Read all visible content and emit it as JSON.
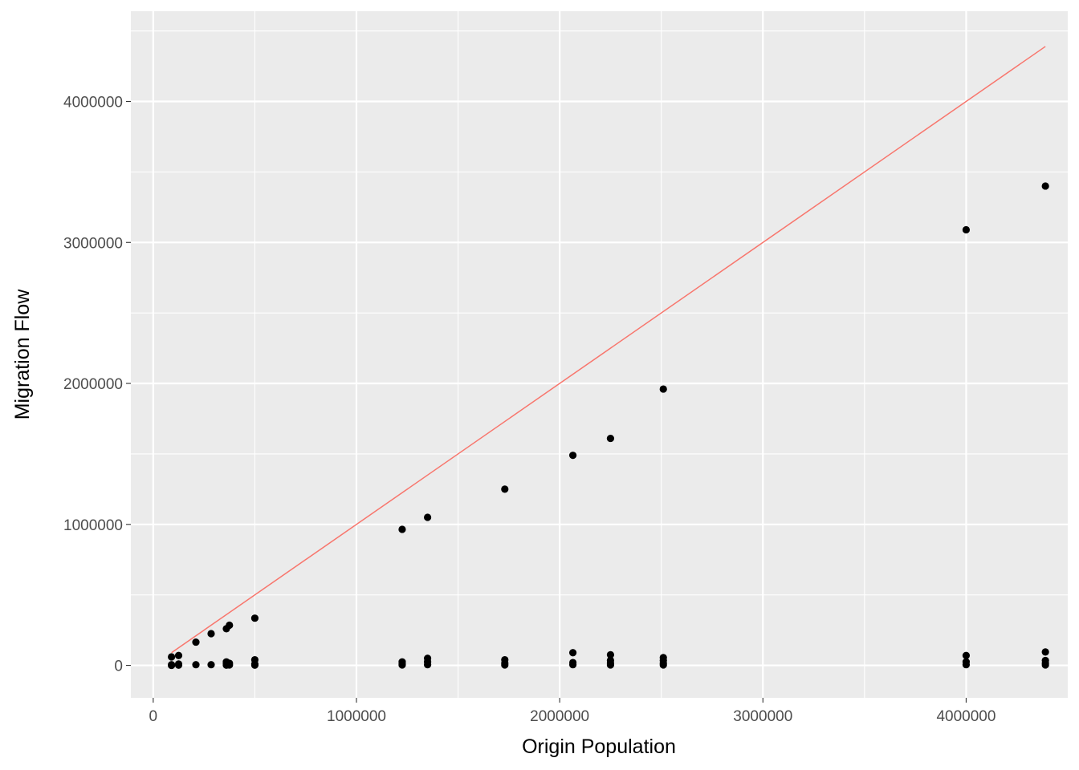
{
  "chart_data": {
    "type": "scatter",
    "title": "",
    "xlabel": "Origin Population",
    "ylabel": "Migration Flow",
    "xlim": [
      -110000,
      4500000
    ],
    "ylim": [
      -230000,
      4640000
    ],
    "x_ticks": [
      {
        "value": 0,
        "label": "0"
      },
      {
        "value": 1000000,
        "label": "1000000"
      },
      {
        "value": 2000000,
        "label": "2000000"
      },
      {
        "value": 3000000,
        "label": "3000000"
      },
      {
        "value": 4000000,
        "label": "4000000"
      }
    ],
    "y_ticks": [
      {
        "value": 0,
        "label": "0"
      },
      {
        "value": 1000000,
        "label": "1000000"
      },
      {
        "value": 2000000,
        "label": "2000000"
      },
      {
        "value": 3000000,
        "label": "3000000"
      },
      {
        "value": 4000000,
        "label": "4000000"
      }
    ],
    "grid": true,
    "colors": {
      "panel_background": "#ebebeb",
      "grid_line": "#ffffff",
      "point": "#000000",
      "reference_line": "#f8766d"
    },
    "reference_line": {
      "type": "identity",
      "x": [
        90000,
        4390000
      ],
      "y": [
        90000,
        4390000
      ]
    },
    "points": [
      {
        "x": 90000,
        "y": 60000
      },
      {
        "x": 90000,
        "y": 5000
      },
      {
        "x": 90000,
        "y": 0
      },
      {
        "x": 125000,
        "y": 70000
      },
      {
        "x": 125000,
        "y": 10000
      },
      {
        "x": 125000,
        "y": 2000
      },
      {
        "x": 210000,
        "y": 165000
      },
      {
        "x": 210000,
        "y": 5000
      },
      {
        "x": 285000,
        "y": 225000
      },
      {
        "x": 285000,
        "y": 5000
      },
      {
        "x": 360000,
        "y": 260000
      },
      {
        "x": 360000,
        "y": 25000
      },
      {
        "x": 360000,
        "y": 12000
      },
      {
        "x": 360000,
        "y": 2000
      },
      {
        "x": 375000,
        "y": 285000
      },
      {
        "x": 375000,
        "y": 15000
      },
      {
        "x": 375000,
        "y": 3000
      },
      {
        "x": 500000,
        "y": 335000
      },
      {
        "x": 500000,
        "y": 40000
      },
      {
        "x": 500000,
        "y": 10000
      },
      {
        "x": 500000,
        "y": 2000
      },
      {
        "x": 1225000,
        "y": 965000
      },
      {
        "x": 1225000,
        "y": 25000
      },
      {
        "x": 1225000,
        "y": 10000
      },
      {
        "x": 1225000,
        "y": 3000
      },
      {
        "x": 1350000,
        "y": 1050000
      },
      {
        "x": 1350000,
        "y": 50000
      },
      {
        "x": 1350000,
        "y": 25000
      },
      {
        "x": 1350000,
        "y": 5000
      },
      {
        "x": 1730000,
        "y": 1250000
      },
      {
        "x": 1730000,
        "y": 40000
      },
      {
        "x": 1730000,
        "y": 15000
      },
      {
        "x": 1730000,
        "y": 3000
      },
      {
        "x": 2065000,
        "y": 1490000
      },
      {
        "x": 2065000,
        "y": 90000
      },
      {
        "x": 2065000,
        "y": 20000
      },
      {
        "x": 2065000,
        "y": 5000
      },
      {
        "x": 2250000,
        "y": 1610000
      },
      {
        "x": 2250000,
        "y": 75000
      },
      {
        "x": 2250000,
        "y": 35000
      },
      {
        "x": 2250000,
        "y": 15000
      },
      {
        "x": 2250000,
        "y": 3000
      },
      {
        "x": 2510000,
        "y": 1960000
      },
      {
        "x": 2510000,
        "y": 55000
      },
      {
        "x": 2510000,
        "y": 35000
      },
      {
        "x": 2510000,
        "y": 15000
      },
      {
        "x": 2510000,
        "y": 3000
      },
      {
        "x": 4000000,
        "y": 3090000
      },
      {
        "x": 4000000,
        "y": 70000
      },
      {
        "x": 4000000,
        "y": 25000
      },
      {
        "x": 4000000,
        "y": 5000
      },
      {
        "x": 4390000,
        "y": 3400000
      },
      {
        "x": 4390000,
        "y": 95000
      },
      {
        "x": 4390000,
        "y": 35000
      },
      {
        "x": 4390000,
        "y": 15000
      },
      {
        "x": 4390000,
        "y": 3000
      }
    ]
  }
}
